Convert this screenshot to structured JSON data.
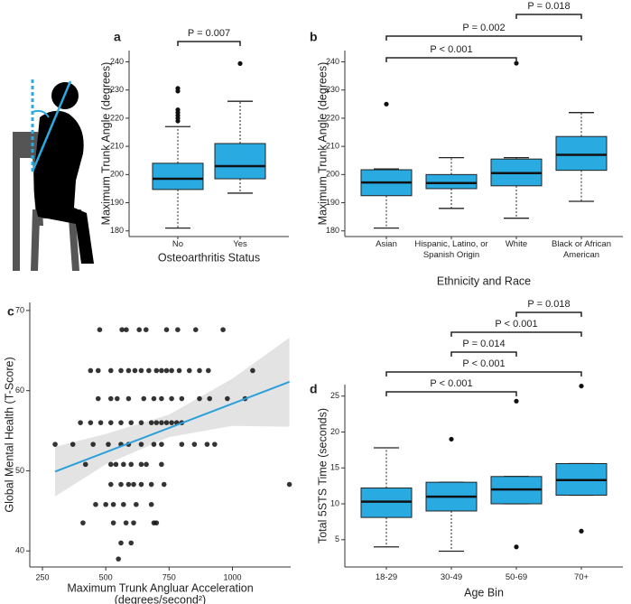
{
  "chart_data": [
    {
      "type": "box",
      "panel": "a",
      "xlabel": "Osteoarthritis Status",
      "ylabel": "Maximum Trunk Angle (degrees)",
      "color": "#29abe2",
      "categories": [
        "No",
        "Yes"
      ],
      "boxes": [
        {
          "whisker_low": 181,
          "q1": 194.7,
          "median": 198.5,
          "q3": 204,
          "whisker_high": 217,
          "outliers": [
            219,
            220,
            221,
            222,
            223,
            229.6,
            230.6
          ]
        },
        {
          "whisker_low": 193.4,
          "q1": 198.5,
          "median": 203,
          "q3": 211,
          "whisker_high": 226,
          "outliers": [
            239.4
          ]
        }
      ],
      "ylim": [
        178,
        244
      ],
      "yticks": [
        180,
        190,
        200,
        210,
        220,
        230,
        240
      ],
      "comparisons": [
        {
          "groups": [
            "No",
            "Yes"
          ],
          "label": "P = 0.007"
        }
      ]
    },
    {
      "type": "box",
      "panel": "b",
      "xlabel": "Ethnicity and Race",
      "ylabel": "Maximum Trunk Angle (degrees)",
      "color": "#29abe2",
      "categories": [
        "Asian",
        "Hispanic, Latino, or Spanish Origin",
        "White",
        "Black or African American"
      ],
      "boxes": [
        {
          "whisker_low": 181,
          "q1": 192.5,
          "median": 197.2,
          "q3": 201.7,
          "whisker_high": 202,
          "outliers": [
            225
          ]
        },
        {
          "whisker_low": 188,
          "q1": 195,
          "median": 197,
          "q3": 200,
          "whisker_high": 206,
          "outliers": []
        },
        {
          "whisker_low": 184.5,
          "q1": 196,
          "median": 200.5,
          "q3": 205.5,
          "whisker_high": 206,
          "outliers": [
            239.5
          ]
        },
        {
          "whisker_low": 190.5,
          "q1": 201.5,
          "median": 207,
          "q3": 213.5,
          "whisker_high": 222,
          "outliers": []
        }
      ],
      "ylim": [
        178,
        244
      ],
      "yticks": [
        180,
        190,
        200,
        210,
        220,
        230,
        240
      ],
      "comparisons": [
        {
          "groups": [
            "Asian",
            "White"
          ],
          "label": "P < 0.001"
        },
        {
          "groups": [
            "Asian",
            "Black or African American"
          ],
          "label": "P = 0.002"
        },
        {
          "groups": [
            "White",
            "Black or African American"
          ],
          "label": "P = 0.018"
        }
      ]
    },
    {
      "type": "scatter",
      "panel": "c",
      "xlabel": [
        "Maximum Trunk Angluar Acceleration",
        "(degrees/second²)"
      ],
      "ylabel": "Global Mental Health (T-Score)",
      "color": "#111111",
      "fit_color": "#2b9fd9",
      "x": [
        476,
        564,
        581,
        632,
        659,
        740,
        784,
        855,
        963,
        440,
        470,
        520,
        560,
        590,
        615,
        640,
        670,
        700,
        720,
        740,
        760,
        790,
        830,
        870,
        905,
        1080,
        470,
        520,
        545,
        590,
        650,
        690,
        720,
        760,
        800,
        870,
        910,
        980,
        1050,
        400,
        440,
        480,
        520,
        560,
        600,
        640,
        680,
        700,
        720,
        740,
        760,
        780,
        800,
        300,
        370,
        450,
        510,
        560,
        590,
        640,
        690,
        720,
        800,
        850,
        900,
        930,
        420,
        520,
        540,
        570,
        600,
        640,
        660,
        720,
        520,
        560,
        590,
        610,
        640,
        680,
        730,
        1225,
        460,
        500,
        530,
        570,
        620,
        680,
        410,
        530,
        580,
        610,
        690,
        700,
        560,
        600,
        550
      ],
      "values": [
        67.6,
        67.6,
        67.6,
        67.6,
        67.6,
        67.6,
        67.6,
        67.6,
        67.6,
        62.5,
        62.5,
        62.5,
        62.5,
        62.5,
        62.5,
        62.5,
        62.5,
        62.5,
        62.5,
        62.5,
        62.5,
        62.5,
        62.5,
        62.5,
        62.5,
        62.5,
        59,
        59,
        59,
        59,
        59,
        59,
        59,
        59,
        59,
        59,
        59,
        59,
        59,
        56,
        56,
        56,
        56,
        56,
        56,
        56,
        56,
        56,
        56,
        56,
        56,
        56,
        56,
        53.3,
        53.3,
        53.3,
        53.3,
        53.3,
        53.3,
        53.3,
        53.3,
        53.3,
        53.3,
        53.3,
        53.3,
        53.3,
        50.8,
        50.8,
        50.8,
        50.8,
        50.8,
        50.8,
        50.8,
        50.8,
        48.3,
        48.3,
        48.3,
        48.3,
        48.3,
        48.3,
        48.3,
        48.3,
        45.8,
        45.8,
        45.8,
        45.8,
        45.8,
        45.8,
        43.5,
        43.5,
        43.5,
        43.5,
        43.5,
        43.5,
        41,
        41,
        39
      ],
      "fit": {
        "x": [
          300,
          1225
        ],
        "y": [
          49.9,
          61.1
        ]
      },
      "ci_x": [
        300,
        500,
        750,
        1000,
        1225
      ],
      "ci_low": [
        46.8,
        50.8,
        54.2,
        55.6,
        55.5
      ],
      "ci_high": [
        53,
        54.6,
        57,
        61.5,
        66.6
      ],
      "xlim": [
        200,
        1230
      ],
      "xticks": [
        250,
        500,
        750,
        1000
      ],
      "ylim": [
        38,
        71
      ],
      "yticks": [
        40,
        50,
        60,
        70
      ]
    },
    {
      "type": "box",
      "panel": "d",
      "xlabel": "Age Bin",
      "ylabel": "Total 5STS Time (seconds)",
      "color": "#29abe2",
      "categories": [
        "18-29",
        "30-49",
        "50-69",
        "70+"
      ],
      "boxes": [
        {
          "whisker_low": 4,
          "q1": 8.1,
          "median": 10.3,
          "q3": 12.2,
          "whisker_high": 17.8,
          "outliers": []
        },
        {
          "whisker_low": 3.4,
          "q1": 9,
          "median": 11,
          "q3": 13,
          "whisker_high": 13,
          "outliers": [
            19
          ]
        },
        {
          "whisker_low": 10,
          "q1": 10,
          "median": 12,
          "q3": 13.8,
          "whisker_high": 13.8,
          "outliers": [
            24.3,
            4
          ]
        },
        {
          "whisker_low": 11.2,
          "q1": 11.2,
          "median": 13.3,
          "q3": 15.6,
          "whisker_high": 15.6,
          "outliers": [
            26.4,
            6.2
          ]
        }
      ],
      "ylim": [
        1.2,
        26.6
      ],
      "yticks": [
        5,
        10,
        15,
        20,
        25
      ],
      "comparisons": [
        {
          "groups": [
            "18-29",
            "50-69"
          ],
          "label": "P < 0.001"
        },
        {
          "groups": [
            "18-29",
            "70+"
          ],
          "label": "P < 0.001"
        },
        {
          "groups": [
            "30-49",
            "50-69"
          ],
          "label": "P = 0.014"
        },
        {
          "groups": [
            "30-49",
            "70+"
          ],
          "label": "P < 0.001"
        },
        {
          "groups": [
            "50-69",
            "70+"
          ],
          "label": "P = 0.018"
        }
      ]
    }
  ]
}
